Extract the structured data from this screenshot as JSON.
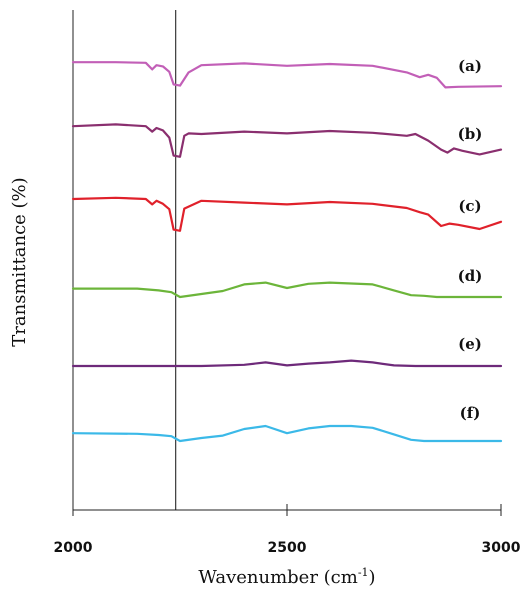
{
  "chart_data": {
    "type": "line",
    "title": "",
    "xlabel": "Wavenumber (cm",
    "xlabel_sup": "-1",
    "xlabel_end": ")",
    "ylabel": "Transmittance (%)",
    "xlim": [
      2000,
      3000
    ],
    "x_ticks": [
      2000,
      2500,
      3000
    ],
    "x_tick_labels": [
      "2000",
      "2500",
      "3000"
    ],
    "reference_line_x": 2240,
    "grid": false,
    "legend": "none",
    "series": [
      {
        "name": "(a)",
        "color": "#c25fb7",
        "x": [
          2000,
          2100,
          2170,
          2185,
          2195,
          2210,
          2225,
          2235,
          2250,
          2270,
          2300,
          2400,
          2500,
          2600,
          2700,
          2780,
          2810,
          2830,
          2850,
          2870,
          2900,
          3000
        ],
        "y": [
          0.3,
          0.3,
          0.2,
          -0.9,
          -0.2,
          -0.4,
          -1.3,
          -3.4,
          -3.6,
          -1.4,
          -0.2,
          0.1,
          -0.3,
          0.0,
          -0.3,
          -1.4,
          -2.2,
          -1.8,
          -2.3,
          -3.9,
          -3.8,
          -3.7
        ]
      },
      {
        "name": "(b)",
        "color": "#8a2f6f",
        "x": [
          2000,
          2100,
          2170,
          2185,
          2195,
          2210,
          2225,
          2235,
          2250,
          2260,
          2270,
          2300,
          2400,
          2500,
          2600,
          2700,
          2780,
          2800,
          2830,
          2860,
          2875,
          2890,
          2910,
          2950,
          3000
        ],
        "y": [
          0.3,
          0.6,
          0.3,
          -0.6,
          0.0,
          -0.4,
          -1.6,
          -4.6,
          -4.8,
          -1.3,
          -0.9,
          -1.0,
          -0.6,
          -0.9,
          -0.5,
          -0.8,
          -1.3,
          -1.0,
          -2.1,
          -3.6,
          -4.1,
          -3.4,
          -3.8,
          -4.4,
          -3.6
        ]
      },
      {
        "name": "(c)",
        "color": "#e0212b",
        "x": [
          2000,
          2100,
          2170,
          2185,
          2195,
          2210,
          2225,
          2235,
          2250,
          2260,
          2300,
          2400,
          2500,
          2600,
          2700,
          2780,
          2810,
          2830,
          2860,
          2880,
          2900,
          2950,
          3000
        ],
        "y": [
          0.0,
          0.2,
          0.0,
          -0.9,
          -0.3,
          -0.8,
          -1.7,
          -5.1,
          -5.3,
          -1.6,
          -0.3,
          -0.6,
          -0.9,
          -0.5,
          -0.8,
          -1.5,
          -2.2,
          -2.6,
          -4.5,
          -4.1,
          -4.3,
          -5.0,
          -3.8
        ]
      },
      {
        "name": "(d)",
        "color": "#6cb53a",
        "x": [
          2000,
          2150,
          2200,
          2230,
          2250,
          2300,
          2350,
          2400,
          2450,
          2500,
          2550,
          2600,
          2700,
          2750,
          2790,
          2820,
          2850,
          3000
        ],
        "y": [
          -0.1,
          -0.1,
          -0.4,
          -0.7,
          -1.5,
          -1.0,
          -0.5,
          0.6,
          0.9,
          0.0,
          0.7,
          0.9,
          0.6,
          -0.4,
          -1.2,
          -1.3,
          -1.5,
          -1.5
        ]
      },
      {
        "name": "(e)",
        "color": "#6e2a7a",
        "x": [
          2000,
          2200,
          2300,
          2400,
          2450,
          2500,
          2550,
          2600,
          2650,
          2700,
          2750,
          2800,
          3000
        ],
        "y": [
          0.0,
          0.0,
          0.0,
          0.2,
          0.6,
          0.1,
          0.4,
          0.6,
          0.9,
          0.6,
          0.1,
          0.0,
          0.0
        ]
      },
      {
        "name": "(f)",
        "color": "#3bb9e8",
        "x": [
          2000,
          2150,
          2200,
          2230,
          2250,
          2300,
          2350,
          2400,
          2450,
          2500,
          2550,
          2600,
          2650,
          2700,
          2750,
          2790,
          2820,
          2850,
          3000
        ],
        "y": [
          -0.2,
          -0.3,
          -0.5,
          -0.7,
          -1.5,
          -1.0,
          -0.6,
          0.5,
          1.0,
          -0.2,
          0.6,
          1.0,
          1.0,
          0.7,
          -0.4,
          -1.3,
          -1.5,
          -1.5,
          -1.5
        ]
      }
    ]
  }
}
